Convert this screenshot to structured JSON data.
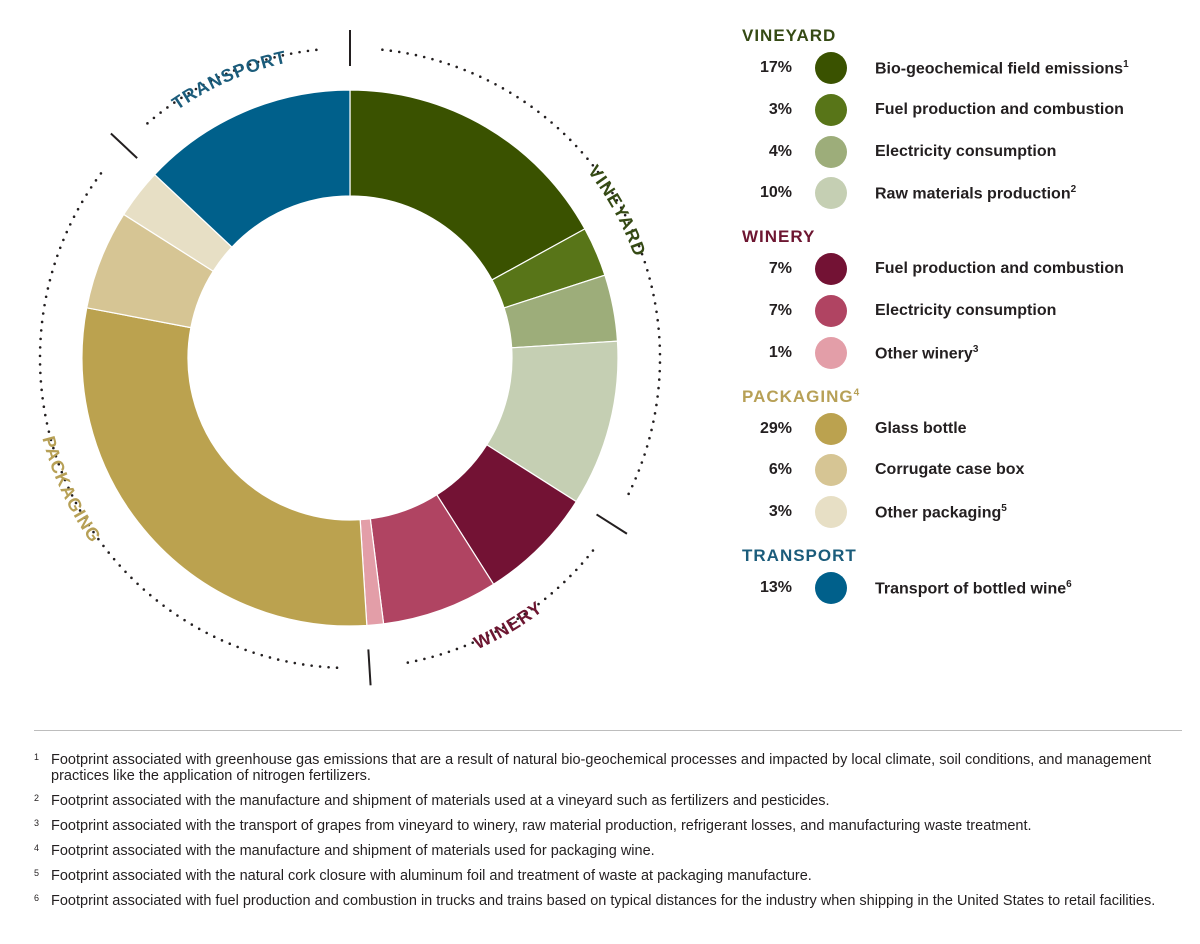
{
  "chart_data": {
    "type": "pie",
    "variant": "donut",
    "title": "",
    "series": [
      {
        "group": "vineyard",
        "label": "Bio-geochemical field emissions",
        "sup": "1",
        "value": 17,
        "pct_label": "17%",
        "color": "#3a5200"
      },
      {
        "group": "vineyard",
        "label": "Fuel production and combustion",
        "sup": "",
        "value": 3,
        "pct_label": "3%",
        "color": "#587518"
      },
      {
        "group": "vineyard",
        "label": "Electricity consumption",
        "sup": "",
        "value": 4,
        "pct_label": "4%",
        "color": "#9dad7a"
      },
      {
        "group": "vineyard",
        "label": "Raw materials production",
        "sup": "2",
        "value": 10,
        "pct_label": "10%",
        "color": "#c5cfb3"
      },
      {
        "group": "winery",
        "label": "Fuel production and combustion",
        "sup": "",
        "value": 7,
        "pct_label": "7%",
        "color": "#731234"
      },
      {
        "group": "winery",
        "label": "Electricity consumption",
        "sup": "",
        "value": 7,
        "pct_label": "7%",
        "color": "#b04462"
      },
      {
        "group": "winery",
        "label": "Other winery",
        "sup": "3",
        "value": 1,
        "pct_label": "1%",
        "color": "#e39ea8"
      },
      {
        "group": "packaging",
        "label": "Glass bottle",
        "sup": "",
        "value": 29,
        "pct_label": "29%",
        "color": "#bba24f"
      },
      {
        "group": "packaging",
        "label": "Corrugate case box",
        "sup": "",
        "value": 6,
        "pct_label": "6%",
        "color": "#d6c594"
      },
      {
        "group": "packaging",
        "label": "Other packaging",
        "sup": "5",
        "value": 3,
        "pct_label": "3%",
        "color": "#e7dfc5"
      },
      {
        "group": "transport",
        "label": "Transport of bottled wine",
        "sup": "6",
        "value": 13,
        "pct_label": "13%",
        "color": "#00608b"
      }
    ],
    "groups": [
      {
        "key": "vineyard",
        "title": "VINEYARD",
        "sup": "",
        "color": "#3a5200",
        "label_color": "#354a14"
      },
      {
        "key": "winery",
        "title": "WINERY",
        "sup": "",
        "color": "#731234",
        "label_color": "#6d1631"
      },
      {
        "key": "packaging",
        "title": "PACKAGING",
        "sup": "4",
        "color": "#bba24f",
        "label_color": "#b7a056"
      },
      {
        "key": "transport",
        "title": "TRANSPORT",
        "sup": "",
        "color": "#00608b",
        "label_color": "#1b5c7b"
      }
    ]
  },
  "footnotes": [
    {
      "num": "1",
      "text": "Footprint associated with greenhouse gas emissions that are a result of natural bio-geochemical processes and impacted by local climate, soil conditions, and management practices like the application of nitrogen fertilizers."
    },
    {
      "num": "2",
      "text": "Footprint associated with the manufacture and shipment of materials used at a vineyard such as fertilizers and pesticides."
    },
    {
      "num": "3",
      "text": "Footprint associated with the transport of grapes from vineyard to winery, raw material production, refrigerant losses, and manufacturing waste treatment."
    },
    {
      "num": "4",
      "text": "Footprint associated with the manufacture and shipment of materials used for packaging wine."
    },
    {
      "num": "5",
      "text": "Footprint associated with the natural cork closure with aluminum foil and treatment of waste at packaging manufacture."
    },
    {
      "num": "6",
      "text": "Footprint associated with fuel production and combustion in trucks and trains based on typical distances for the industry when shipping in the United States to retail facilities."
    }
  ]
}
